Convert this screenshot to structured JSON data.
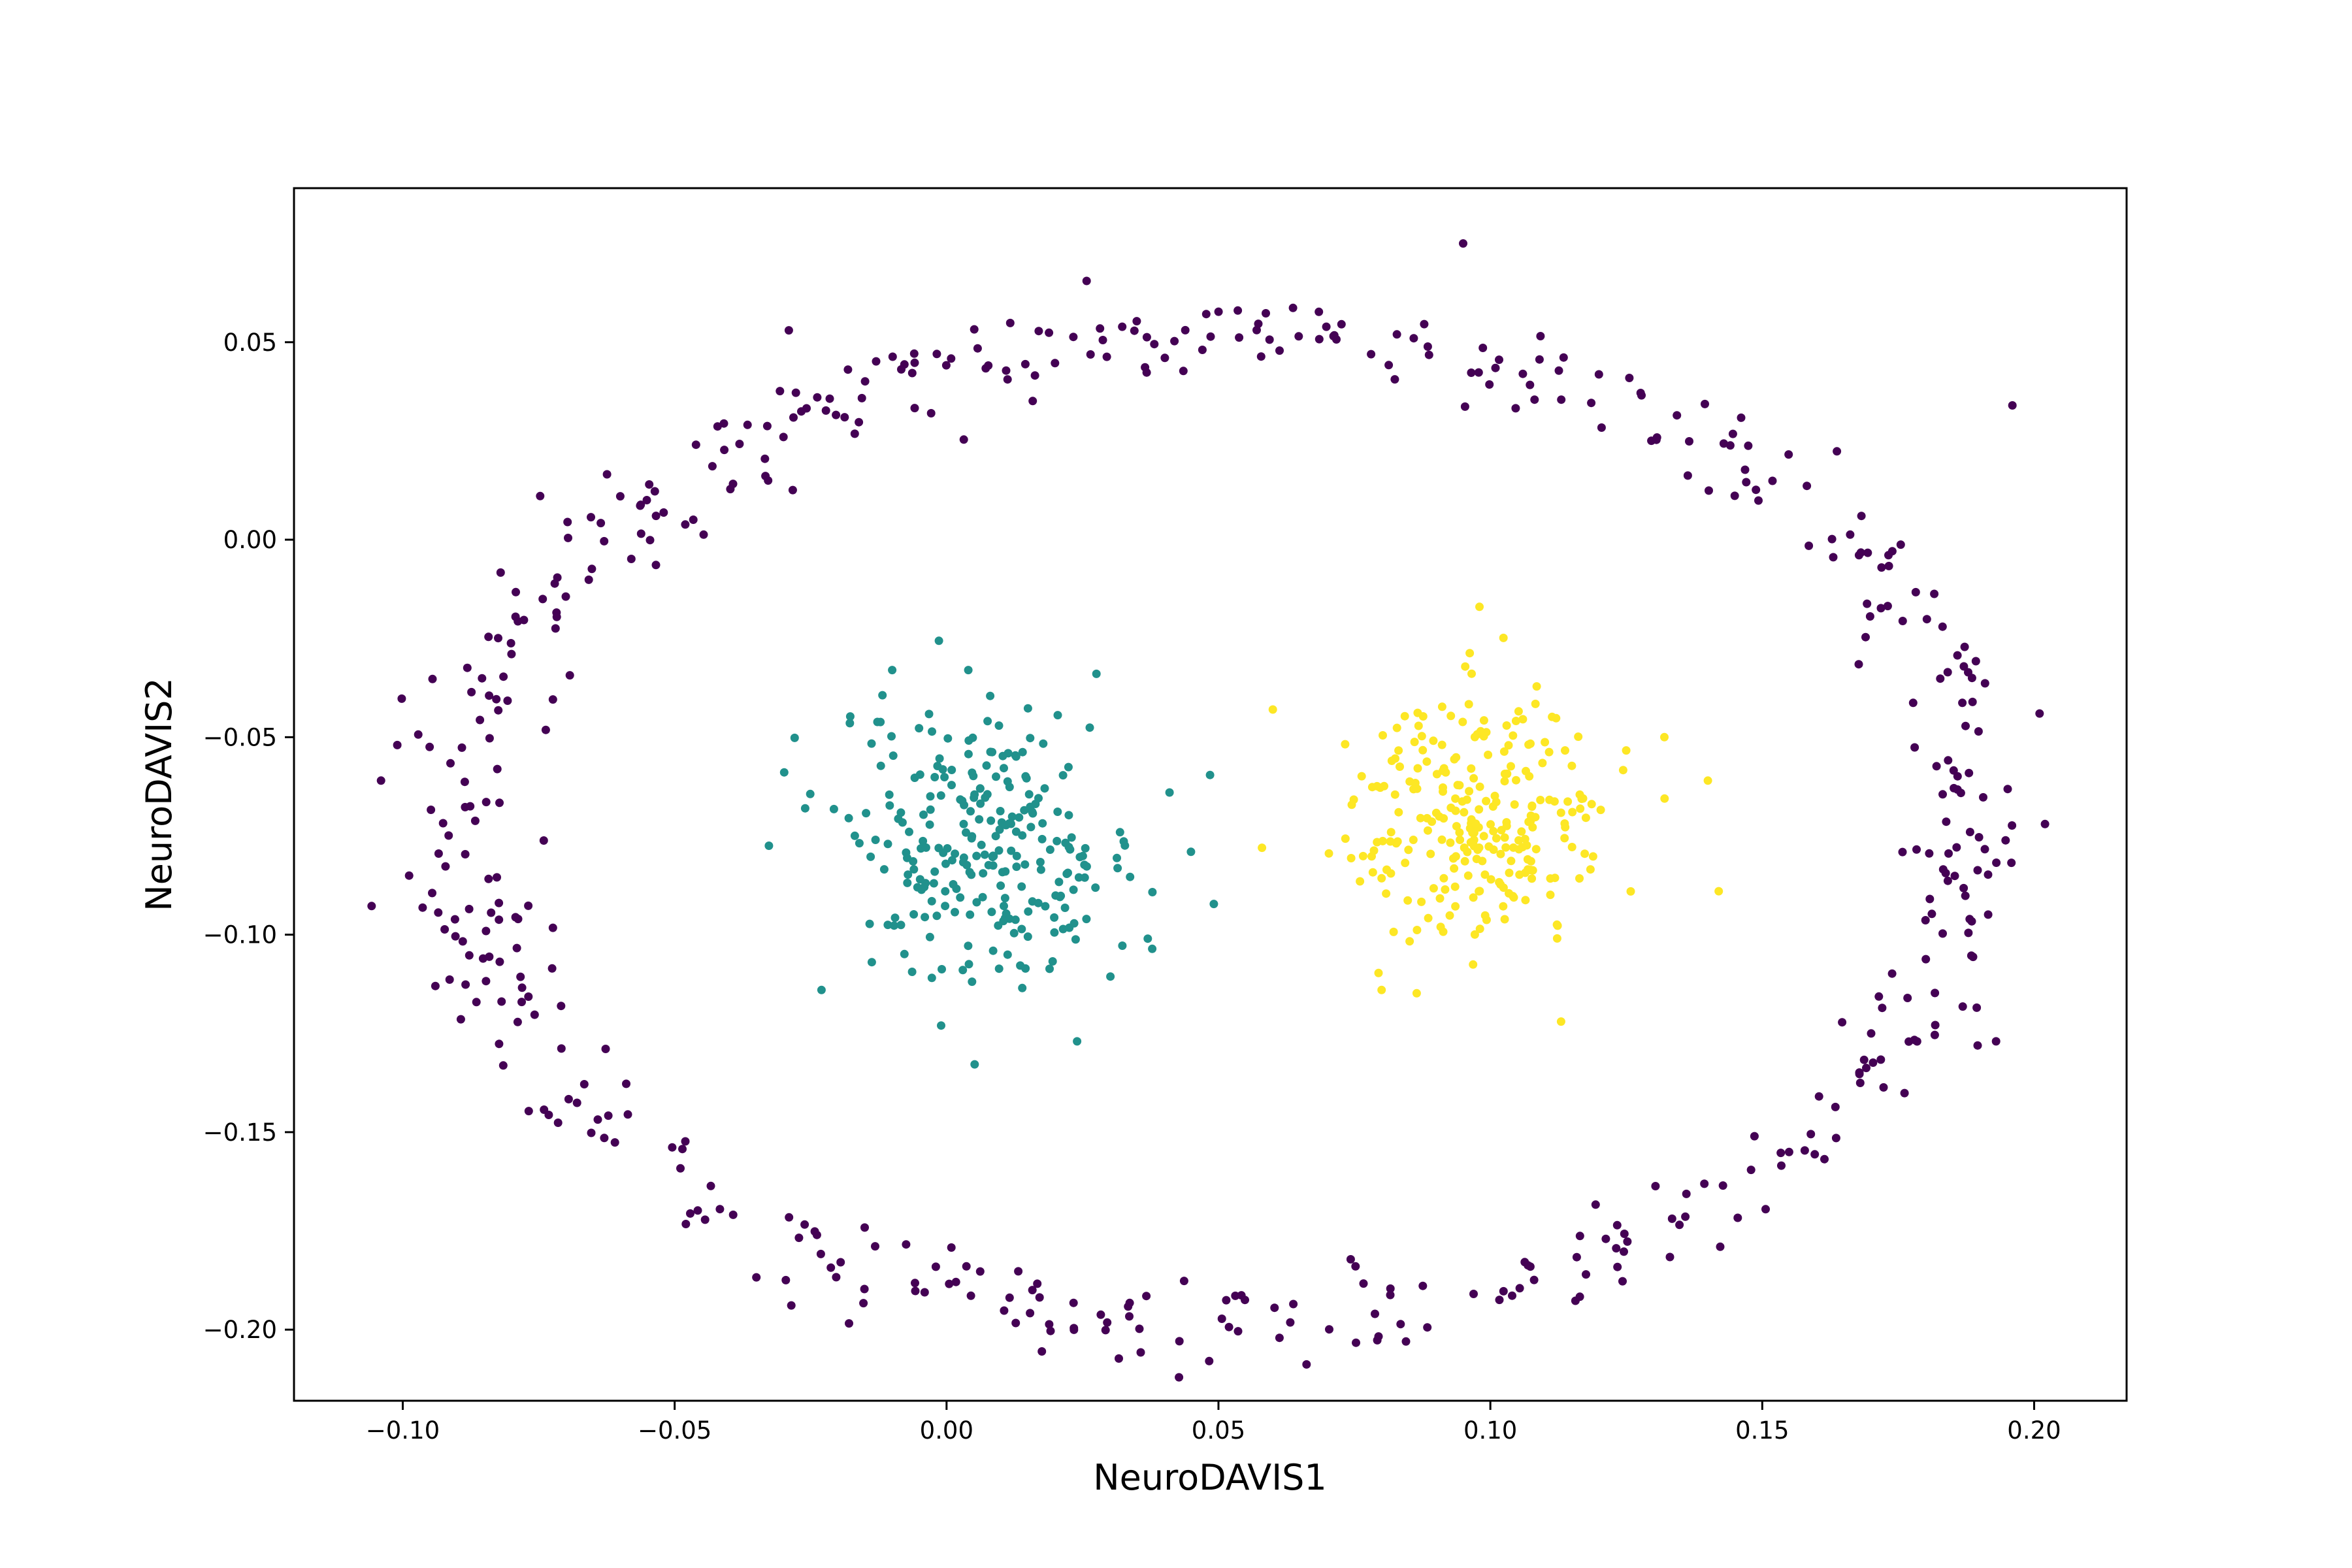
{
  "chart_data": {
    "type": "scatter",
    "title": "",
    "xlabel": "NeuroDAVIS1",
    "ylabel": "NeuroDAVIS2",
    "xlim": [
      -0.12,
      0.217
    ],
    "ylim": [
      -0.218,
      0.089
    ],
    "xticks": [
      -0.1,
      -0.05,
      0.0,
      0.05,
      0.1,
      0.15,
      0.2
    ],
    "xtick_labels": [
      "−0.10",
      "−0.05",
      "0.00",
      "0.05",
      "0.10",
      "0.15",
      "0.20"
    ],
    "yticks": [
      0.05,
      0.0,
      -0.05,
      -0.1,
      -0.15,
      -0.2
    ],
    "ytick_labels": [
      "0.05",
      "0.00",
      "−0.05",
      "−0.10",
      "−0.15",
      "−0.20"
    ],
    "grid": false,
    "legend": "none",
    "series": [
      {
        "color": "#440154",
        "shape": "ring",
        "center": [
          0.05,
          -0.073
        ],
        "radii": [
          0.14,
          0.125
        ],
        "n": 520,
        "points": [
          [
            0.095,
            0.075
          ],
          [
            -0.104,
            -0.061
          ],
          [
            -0.101,
            -0.052
          ],
          [
            0.201,
            -0.044
          ],
          [
            0.202,
            -0.072
          ],
          [
            -0.094,
            -0.113
          ],
          [
            0.193,
            -0.127
          ],
          [
            -0.06,
            0.011
          ],
          [
            -0.029,
            0.053
          ],
          [
            0.196,
            0.034
          ]
        ]
      },
      {
        "color": "#21918c",
        "shape": "cluster",
        "center": [
          0.008,
          -0.077
        ],
        "spread": [
          0.014,
          0.017
        ],
        "n": 260,
        "points": [
          [
            -0.01,
            -0.033
          ],
          [
            0.004,
            -0.033
          ],
          [
            0.024,
            -0.127
          ],
          [
            -0.023,
            -0.114
          ],
          [
            0.041,
            -0.064
          ],
          [
            0.037,
            -0.101
          ],
          [
            -0.001,
            -0.123
          ],
          [
            -0.026,
            -0.068
          ]
        ]
      },
      {
        "color": "#fde725",
        "shape": "cluster",
        "center": [
          0.098,
          -0.07
        ],
        "spread": [
          0.012,
          0.016
        ],
        "n": 260,
        "points": [
          [
            0.098,
            -0.017
          ],
          [
            0.06,
            -0.043
          ],
          [
            0.142,
            -0.089
          ],
          [
            0.14,
            -0.061
          ],
          [
            0.113,
            -0.122
          ],
          [
            0.058,
            -0.078
          ],
          [
            0.132,
            -0.05
          ],
          [
            0.08,
            -0.114
          ]
        ]
      }
    ]
  }
}
